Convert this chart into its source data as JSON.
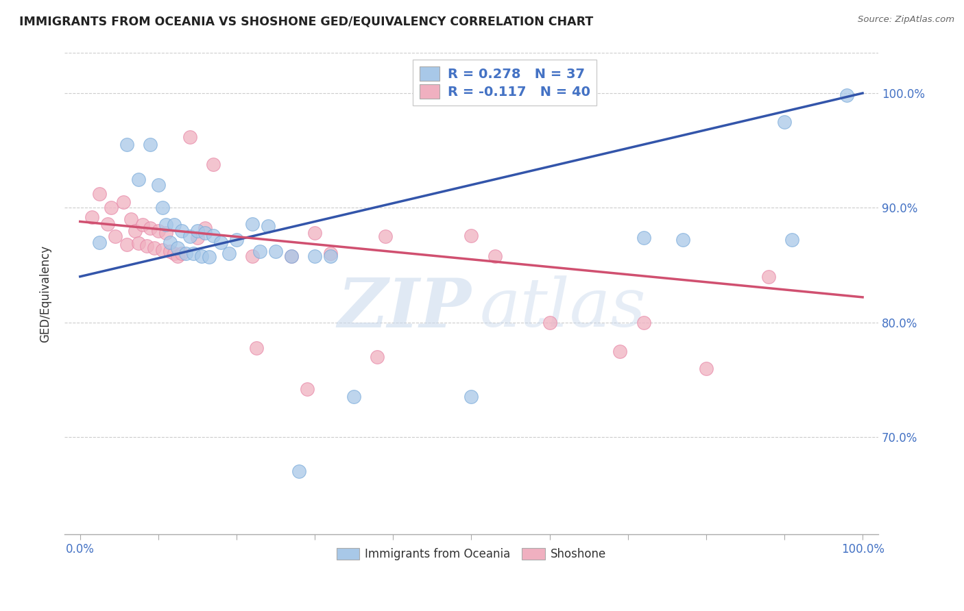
{
  "title": "IMMIGRANTS FROM OCEANIA VS SHOSHONE GED/EQUIVALENCY CORRELATION CHART",
  "source": "Source: ZipAtlas.com",
  "ylabel": "GED/Equivalency",
  "y_ticks": [
    "70.0%",
    "80.0%",
    "90.0%",
    "100.0%"
  ],
  "y_tick_vals": [
    0.7,
    0.8,
    0.9,
    1.0
  ],
  "xlim": [
    -0.02,
    1.02
  ],
  "ylim": [
    0.615,
    1.035
  ],
  "legend_r1": "R = 0.278",
  "legend_n1": "N = 37",
  "legend_r2": "R = -0.117",
  "legend_n2": "N = 40",
  "blue_color": "#A8C8E8",
  "pink_color": "#F0B0C0",
  "blue_edge": "#7AABDA",
  "pink_edge": "#E888A8",
  "blue_line_color": "#3355AA",
  "pink_line_color": "#D05070",
  "watermark_zip": "ZIP",
  "watermark_atlas": "atlas",
  "blue_scatter_x": [
    0.025,
    0.06,
    0.075,
    0.09,
    0.1,
    0.105,
    0.11,
    0.115,
    0.12,
    0.125,
    0.13,
    0.135,
    0.14,
    0.145,
    0.15,
    0.155,
    0.16,
    0.165,
    0.17,
    0.18,
    0.19,
    0.2,
    0.22,
    0.23,
    0.24,
    0.25,
    0.27,
    0.28,
    0.3,
    0.32,
    0.35,
    0.5,
    0.72,
    0.77,
    0.9,
    0.91,
    0.98
  ],
  "blue_scatter_y": [
    0.87,
    0.955,
    0.925,
    0.955,
    0.92,
    0.9,
    0.885,
    0.87,
    0.885,
    0.865,
    0.88,
    0.86,
    0.875,
    0.86,
    0.88,
    0.858,
    0.878,
    0.857,
    0.876,
    0.87,
    0.86,
    0.872,
    0.886,
    0.862,
    0.884,
    0.862,
    0.858,
    0.67,
    0.858,
    0.858,
    0.735,
    0.735,
    0.874,
    0.872,
    0.975,
    0.872,
    0.998
  ],
  "pink_scatter_x": [
    0.015,
    0.025,
    0.035,
    0.04,
    0.045,
    0.055,
    0.06,
    0.065,
    0.07,
    0.075,
    0.08,
    0.085,
    0.09,
    0.095,
    0.1,
    0.105,
    0.11,
    0.115,
    0.12,
    0.125,
    0.13,
    0.14,
    0.15,
    0.16,
    0.17,
    0.22,
    0.225,
    0.27,
    0.29,
    0.3,
    0.32,
    0.38,
    0.39,
    0.5,
    0.53,
    0.6,
    0.69,
    0.72,
    0.8,
    0.88
  ],
  "pink_scatter_y": [
    0.892,
    0.912,
    0.886,
    0.9,
    0.875,
    0.905,
    0.868,
    0.89,
    0.88,
    0.869,
    0.885,
    0.867,
    0.882,
    0.865,
    0.88,
    0.863,
    0.878,
    0.862,
    0.86,
    0.858,
    0.86,
    0.962,
    0.874,
    0.882,
    0.938,
    0.858,
    0.778,
    0.858,
    0.742,
    0.878,
    0.86,
    0.77,
    0.875,
    0.876,
    0.858,
    0.8,
    0.775,
    0.8,
    0.76,
    0.84
  ],
  "blue_line_x": [
    0.0,
    1.0
  ],
  "blue_line_y": [
    0.84,
    1.0
  ],
  "pink_line_x": [
    0.0,
    1.0
  ],
  "pink_line_y": [
    0.888,
    0.822
  ]
}
